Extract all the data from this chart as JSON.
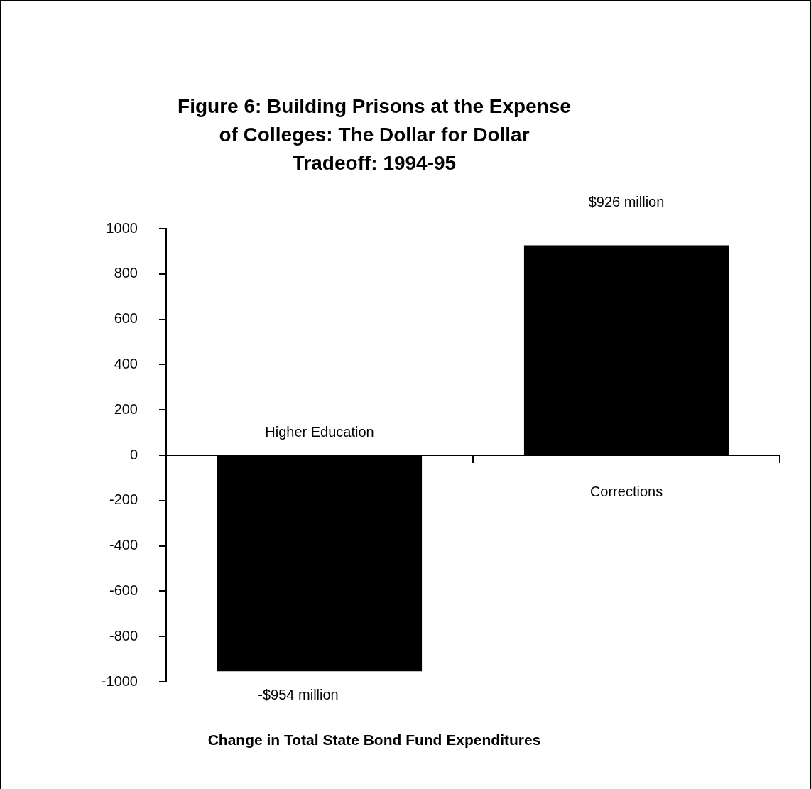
{
  "chart_data": {
    "type": "bar",
    "title": "Figure 6: Building Prisons at the Expense of Colleges: The Dollar for Dollar Tradeoff: 1994-95",
    "xlabel": "Change in Total State Bond Fund Expenditures",
    "categories": [
      "Higher Education",
      "Corrections"
    ],
    "values": [
      -954,
      926
    ],
    "color": "#000000",
    "value_labels": [
      "-$954 million",
      "$926 million"
    ],
    "ylim": [
      -1000,
      1000
    ],
    "yticks": [
      -1000,
      -800,
      -600,
      -400,
      -200,
      0,
      200,
      400,
      600,
      800,
      1000
    ],
    "legend": false
  }
}
